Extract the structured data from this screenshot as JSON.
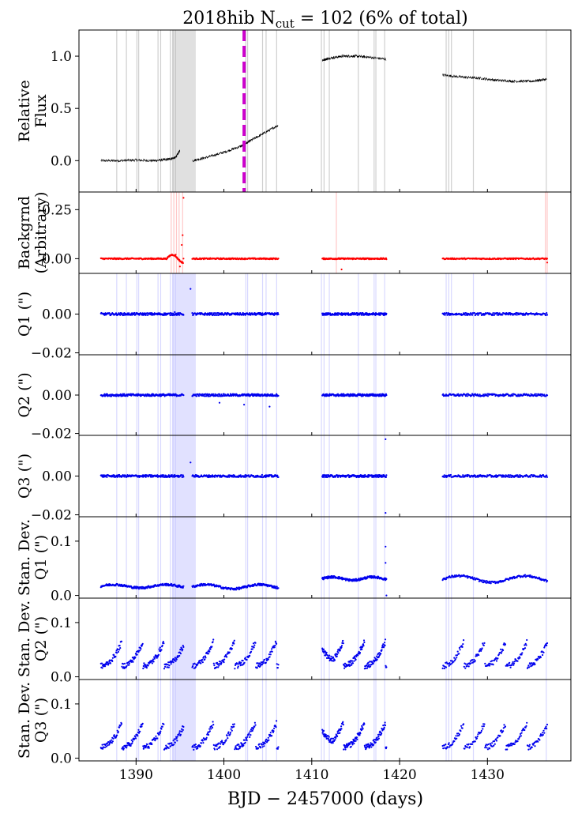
{
  "chart_data": {
    "type": "scatter",
    "title": "2018hib",
    "title_ncut": "N",
    "title_ncut_sub": "cut",
    "title_value": "= 102 (6% of total)",
    "xlabel": "BJD − 2457000 (days)",
    "xlim": [
      1383.5,
      1439.5
    ],
    "x_ticks": [
      1390,
      1400,
      1410,
      1420,
      1430
    ],
    "x_tick_labels": [
      "1390",
      "1400",
      "1410",
      "1420",
      "1430"
    ],
    "segments": [
      [
        1386.0,
        1395.4
      ],
      [
        1396.4,
        1406.2
      ],
      [
        1411.2,
        1418.5
      ],
      [
        1424.9,
        1436.8
      ]
    ],
    "marker_x": 1402.3,
    "marker_color": "#cc00cc",
    "shaded_spans": [
      [
        1394.1,
        1396.8
      ]
    ],
    "cut_lines": [
      1387.8,
      1388.9,
      1390.1,
      1390.3,
      1392.5,
      1392.8,
      1393.9,
      1394.2,
      1394.5,
      1402.5,
      1402.7,
      1404.4,
      1404.8,
      1406.0,
      1411.1,
      1411.4,
      1412.0,
      1415.3,
      1417.1,
      1417.3,
      1418.3,
      1425.3,
      1425.6,
      1425.9,
      1428.4,
      1436.7
    ],
    "panels": [
      {
        "id": "flux",
        "ylabel": [
          "Relative",
          "Flux"
        ],
        "ylim": [
          -0.3,
          1.25
        ],
        "ticks": [
          0.0,
          0.5,
          1.0
        ],
        "tick_labels": [
          "0.0",
          "0.5",
          "1.0"
        ],
        "color": "#000000",
        "series": [
          {
            "x": [
              1386.0,
              1388.0,
              1390.0,
              1392.0,
              1393.5,
              1394.5,
              1395.0
            ],
            "y": [
              0.0,
              0.0,
              0.005,
              0.0,
              0.01,
              0.03,
              0.1
            ]
          },
          {
            "x": [
              1396.4,
              1398.0,
              1400.0,
              1402.0,
              1403.0,
              1404.5,
              1406.2
            ],
            "y": [
              0.0,
              0.03,
              0.08,
              0.14,
              0.19,
              0.26,
              0.34
            ]
          },
          {
            "x": [
              1411.2,
              1412.0,
              1413.5,
              1415.0,
              1416.5,
              1418.5
            ],
            "y": [
              0.96,
              0.98,
              1.0,
              1.0,
              0.99,
              0.97
            ]
          },
          {
            "x": [
              1424.9,
              1427.0,
              1429.0,
              1431.0,
              1433.0,
              1435.0,
              1436.8
            ],
            "y": [
              0.82,
              0.8,
              0.79,
              0.77,
              0.76,
              0.76,
              0.78
            ]
          }
        ]
      },
      {
        "id": "bkg",
        "ylabel": [
          "Backgrnd",
          "(Arbitrary)"
        ],
        "ylim": [
          -0.075,
          0.34
        ],
        "ticks": [
          0.0,
          0.25
        ],
        "tick_labels": [
          "0.00",
          "0.25"
        ],
        "color": "#ff0000",
        "level": 0.0,
        "outliers": [
          {
            "x": 1394.5,
            "y": 0.02
          },
          {
            "x": 1395.2,
            "y": 0.07
          },
          {
            "x": 1395.4,
            "y": 0.31
          },
          {
            "x": 1395.3,
            "y": 0.12
          },
          {
            "x": 1395.0,
            "y": -0.04
          },
          {
            "x": 1413.4,
            "y": -0.055
          },
          {
            "x": 1436.8,
            "y": -0.02
          }
        ]
      },
      {
        "id": "q1",
        "ylabel": [
          "Q1 (\")"
        ],
        "ylim": [
          -0.021,
          0.021
        ],
        "ticks": [
          0.0,
          -0.02
        ],
        "tick_labels": [
          "0.00",
          "−0.02"
        ],
        "color": "#0000ee",
        "level": 0.0,
        "outliers": [
          {
            "x": 1396.2,
            "y": 0.013
          },
          {
            "x": 1394.4,
            "y": 0.001
          }
        ]
      },
      {
        "id": "q2",
        "ylabel": [
          "Q2 (\")"
        ],
        "ylim": [
          -0.021,
          0.021
        ],
        "ticks": [
          0.0,
          -0.02
        ],
        "tick_labels": [
          "0.00",
          "−0.02"
        ],
        "color": "#0000ee",
        "level": 0.0,
        "outliers": [
          {
            "x": 1399.5,
            "y": -0.004
          },
          {
            "x": 1402.3,
            "y": -0.005
          },
          {
            "x": 1405.2,
            "y": -0.006
          }
        ]
      },
      {
        "id": "q3",
        "ylabel": [
          "Q3 (\")"
        ],
        "ylim": [
          -0.021,
          0.021
        ],
        "ticks": [
          0.0,
          -0.02
        ],
        "tick_labels": [
          "0.00",
          "−0.02"
        ],
        "color": "#0000ee",
        "level": 0.0,
        "outliers": [
          {
            "x": 1396.2,
            "y": 0.007
          },
          {
            "x": 1418.4,
            "y": -0.019
          },
          {
            "x": 1418.4,
            "y": 0.019
          }
        ]
      },
      {
        "id": "sd1",
        "ylabel": [
          "Stan. Dev.",
          "Q1 (\")"
        ],
        "ylim": [
          -0.005,
          0.145
        ],
        "ticks": [
          0.0,
          0.1
        ],
        "tick_labels": [
          "0.0",
          "0.1"
        ],
        "color": "#0000ee",
        "seg_levels": [
          0.017,
          0.016,
          0.031,
          0.03
        ],
        "seg_slope": [
          0.003,
          0.004,
          0.003,
          0.006
        ],
        "outliers": [
          {
            "x": 1418.4,
            "y": 0.09
          },
          {
            "x": 1418.4,
            "y": 0.06
          },
          {
            "x": 1418.5,
            "y": 0.0
          }
        ]
      },
      {
        "id": "sd2",
        "ylabel": [
          "Stan. Dev.",
          "Q2 (\")"
        ],
        "ylim": [
          -0.005,
          0.145
        ],
        "ticks": [
          0.0,
          0.1
        ],
        "tick_labels": [
          "0.0",
          "0.1"
        ],
        "color": "#0000ee",
        "sawtooth_low": 0.02,
        "sawtooth_high": 0.065
      },
      {
        "id": "sd3",
        "ylabel": [
          "Stan. Dev.",
          "Q3 (\")"
        ],
        "ylim": [
          -0.005,
          0.145
        ],
        "ticks": [
          0.0,
          0.1
        ],
        "tick_labels": [
          "0.0",
          "0.1"
        ],
        "color": "#0000ee",
        "sawtooth_low": 0.02,
        "sawtooth_high": 0.065
      }
    ]
  }
}
